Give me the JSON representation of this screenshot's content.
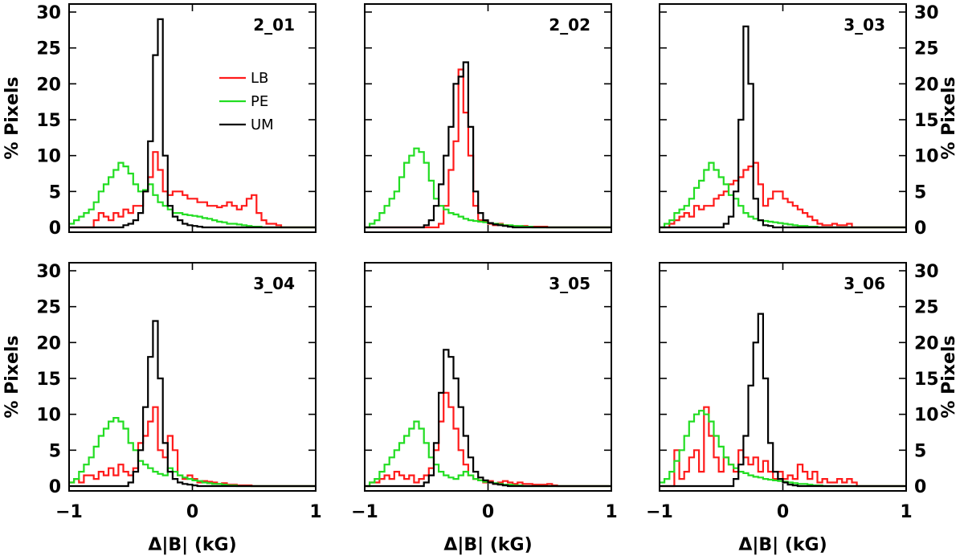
{
  "chart_data": {
    "type": "histogram",
    "layout": "2x3 grid of panels",
    "xlabel": "Δ|B| (kG)",
    "ylabel": "% Pixels",
    "xlim": [
      -1,
      1
    ],
    "ylim": [
      0,
      30
    ],
    "xticks": [
      "−1",
      "0",
      "1"
    ],
    "yticks": [
      "0",
      "5",
      "10",
      "15",
      "20",
      "25",
      "30"
    ],
    "bin_width_kG": 0.04,
    "bin_start_kG": -1.0,
    "legend": {
      "location": "panel 2_01, upper-middle",
      "entries": [
        {
          "label": "LB",
          "color": "#ff1a1a"
        },
        {
          "label": "PE",
          "color": "#22dd22"
        },
        {
          "label": "UM",
          "color": "#000000"
        }
      ]
    },
    "panels": [
      {
        "name": "2_01",
        "series": [
          {
            "name": "LB",
            "color": "#ff1a1a",
            "values": [
              0,
              0,
              0,
              0,
              0,
              1,
              2,
              1.5,
              1,
              2,
              1.5,
              2.5,
              2,
              3,
              3,
              5,
              7,
              10.5,
              8,
              5,
              4.5,
              5,
              5,
              4.5,
              4,
              4,
              3.5,
              3.5,
              3,
              3,
              2.8,
              3,
              3.5,
              3,
              2.5,
              3,
              4,
              4.5,
              2,
              1,
              0.5,
              0.5,
              0.3,
              0,
              0,
              0,
              0,
              0,
              0,
              0
            ]
          },
          {
            "name": "PE",
            "color": "#22dd22",
            "values": [
              0.5,
              1,
              1.5,
              2,
              2.5,
              3.5,
              5,
              6,
              7,
              8,
              9,
              8.5,
              7.5,
              6,
              5,
              5.2,
              6,
              4.5,
              3.5,
              3,
              2.5,
              2,
              2,
              1.8,
              1.7,
              1.6,
              1.5,
              1.3,
              1.2,
              1,
              0.8,
              0.7,
              0.5,
              0.5,
              0.4,
              0.3,
              0.2,
              0.1,
              0.1,
              0,
              0,
              0,
              0,
              0,
              0,
              0,
              0,
              0,
              0,
              0
            ]
          },
          {
            "name": "UM",
            "color": "#000000",
            "values": [
              0,
              0,
              0,
              0,
              0,
              0,
              0,
              0,
              0,
              0,
              0,
              0.3,
              0.5,
              1,
              2,
              5,
              12,
              24,
              29,
              10,
              3,
              1.5,
              1,
              0.5,
              0.3,
              0.2,
              0.1,
              0,
              0,
              0,
              0,
              0,
              0,
              0,
              0,
              0,
              0,
              0,
              0,
              0,
              0,
              0,
              0,
              0,
              0,
              0,
              0,
              0,
              0,
              0
            ]
          }
        ]
      },
      {
        "name": "2_02",
        "series": [
          {
            "name": "LB",
            "color": "#ff1a1a",
            "values": [
              0,
              0,
              0,
              0,
              0,
              0,
              0,
              0,
              0,
              0,
              0,
              0,
              0,
              0,
              0,
              0.5,
              3,
              8,
              12,
              22,
              16,
              10,
              3,
              1,
              0.8,
              0.5,
              0.3,
              0.5,
              0.3,
              0.2,
              0.2,
              0.1,
              0.2,
              0.1,
              0.1,
              0.1,
              0.1,
              0,
              0,
              0,
              0,
              0,
              0,
              0,
              0,
              0,
              0,
              0,
              0,
              0
            ]
          },
          {
            "name": "PE",
            "color": "#22dd22",
            "values": [
              0,
              0.5,
              1,
              2,
              3,
              4,
              5,
              7,
              9,
              10,
              11,
              10.5,
              9,
              6.5,
              4,
              3,
              2.5,
              2,
              1.8,
              1.5,
              1.2,
              1,
              0.9,
              0.8,
              0.7,
              0.6,
              0.5,
              0.4,
              0.3,
              0.3,
              0.2,
              0.2,
              0.1,
              0.1,
              0,
              0,
              0,
              0,
              0,
              0,
              0,
              0,
              0,
              0,
              0,
              0,
              0,
              0,
              0,
              0
            ]
          },
          {
            "name": "UM",
            "color": "#000000",
            "values": [
              0,
              0,
              0,
              0,
              0,
              0,
              0,
              0,
              0,
              0,
              0,
              0,
              0.3,
              1,
              3,
              6,
              10,
              14,
              20,
              21,
              23,
              14,
              5,
              2,
              1,
              0.6,
              0.4,
              0.3,
              0.2,
              0.1,
              0,
              0,
              0,
              0,
              0,
              0,
              0,
              0,
              0,
              0,
              0,
              0,
              0,
              0,
              0,
              0,
              0,
              0,
              0,
              0
            ]
          }
        ]
      },
      {
        "name": "3_03",
        "series": [
          {
            "name": "LB",
            "color": "#ff1a1a",
            "values": [
              0,
              0,
              0.5,
              1,
              1.5,
              2,
              1.5,
              3,
              2.5,
              3,
              3,
              4,
              4.5,
              5,
              6,
              6.5,
              7,
              8,
              8.5,
              9,
              6,
              3,
              4,
              5,
              5,
              4,
              3.5,
              3,
              2.5,
              2,
              1.5,
              1,
              0.5,
              0.3,
              0.3,
              0.5,
              0.3,
              0.3,
              0.5,
              0,
              0,
              0,
              0,
              0,
              0,
              0,
              0,
              0,
              0,
              0
            ]
          },
          {
            "name": "PE",
            "color": "#22dd22",
            "values": [
              0,
              0.5,
              1,
              2,
              2.5,
              3,
              4,
              5.5,
              6.5,
              8,
              9,
              8,
              7,
              6,
              4.5,
              4,
              3,
              2,
              1.5,
              1.2,
              1,
              0.9,
              0.8,
              0.7,
              0.6,
              0.5,
              0.4,
              0.3,
              0.2,
              0.2,
              0.1,
              0.1,
              0,
              0,
              0,
              0,
              0,
              0,
              0,
              0,
              0,
              0,
              0,
              0,
              0,
              0,
              0,
              0,
              0,
              0
            ]
          },
          {
            "name": "UM",
            "color": "#000000",
            "values": [
              0,
              0,
              0,
              0,
              0,
              0,
              0,
              0,
              0,
              0,
              0,
              0,
              0,
              0.5,
              1.5,
              5,
              15,
              28,
              20,
              4,
              1,
              0.3,
              0.2,
              0,
              0,
              0,
              0,
              0,
              0,
              0,
              0,
              0,
              0,
              0,
              0,
              0,
              0,
              0,
              0,
              0,
              0,
              0,
              0,
              0,
              0,
              0,
              0,
              0,
              0,
              0
            ]
          }
        ]
      },
      {
        "name": "3_04",
        "series": [
          {
            "name": "LB",
            "color": "#ff1a1a",
            "values": [
              0.5,
              1,
              0.5,
              1.5,
              1.5,
              1,
              2,
              1.5,
              2.5,
              1.5,
              3,
              2,
              1.5,
              2.5,
              6,
              7,
              9,
              11,
              5,
              4,
              7,
              5,
              1.5,
              1,
              1.5,
              1,
              0.5,
              0.7,
              0.6,
              0.5,
              0.3,
              0.4,
              0.2,
              0.2,
              0.1,
              0.1,
              0.1,
              0,
              0,
              0,
              0,
              0,
              0,
              0,
              0,
              0,
              0,
              0,
              0,
              0
            ]
          },
          {
            "name": "PE",
            "color": "#22dd22",
            "values": [
              0.5,
              1,
              2,
              3,
              4,
              5.5,
              7,
              8,
              9,
              9.5,
              9,
              8,
              6,
              5,
              3.5,
              3,
              2.5,
              2,
              1.7,
              1.5,
              2.5,
              2,
              1.5,
              1.2,
              1,
              0.8,
              0.7,
              0.5,
              0.4,
              0.3,
              0.3,
              0.2,
              0.1,
              0.1,
              0,
              0,
              0,
              0,
              0,
              0,
              0,
              0,
              0,
              0,
              0,
              0,
              0,
              0,
              0,
              0
            ]
          },
          {
            "name": "UM",
            "color": "#000000",
            "values": [
              0,
              0,
              0,
              0,
              0,
              0,
              0,
              0,
              0,
              0,
              0,
              0,
              0.5,
              2,
              5,
              11,
              18,
              23,
              15,
              6,
              2,
              1,
              0.5,
              0.3,
              0.2,
              0.1,
              0,
              0,
              0,
              0,
              0,
              0,
              0,
              0,
              0,
              0,
              0,
              0,
              0,
              0,
              0,
              0,
              0,
              0,
              0,
              0,
              0,
              0,
              0,
              0
            ]
          }
        ]
      },
      {
        "name": "3_05",
        "series": [
          {
            "name": "LB",
            "color": "#ff1a1a",
            "values": [
              0,
              0.5,
              0.5,
              1,
              1.5,
              1,
              2,
              1.5,
              1,
              1.5,
              0.5,
              1,
              1.5,
              2.5,
              5,
              9,
              13,
              11,
              8,
              5,
              3,
              1.5,
              1,
              0.8,
              0.5,
              0.7,
              0.3,
              0.5,
              0.7,
              0.5,
              0.3,
              0.5,
              0.3,
              0.3,
              0.2,
              0.2,
              0.2,
              0.3,
              0.1,
              0,
              0,
              0,
              0,
              0,
              0,
              0,
              0,
              0,
              0,
              0
            ]
          },
          {
            "name": "PE",
            "color": "#22dd22",
            "values": [
              0,
              0.5,
              1,
              2,
              3,
              4,
              5,
              6,
              7,
              8,
              9,
              8,
              6,
              4,
              3,
              2,
              1.5,
              1.2,
              1,
              1.5,
              2,
              1.5,
              1,
              0.8,
              0.6,
              0.5,
              0.4,
              0.3,
              0.2,
              0.2,
              0.1,
              0.1,
              0,
              0,
              0,
              0,
              0,
              0,
              0,
              0,
              0,
              0,
              0,
              0,
              0,
              0,
              0,
              0,
              0,
              0
            ]
          },
          {
            "name": "UM",
            "color": "#000000",
            "values": [
              0,
              0,
              0,
              0,
              0,
              0,
              0,
              0,
              0,
              0,
              0,
              0,
              0.5,
              1.5,
              6,
              13,
              19,
              18,
              15,
              11,
              7,
              4,
              2,
              1.2,
              0.8,
              0.5,
              0.3,
              0.2,
              0.1,
              0,
              0,
              0,
              0,
              0,
              0,
              0,
              0,
              0,
              0,
              0,
              0,
              0,
              0,
              0,
              0,
              0,
              0,
              0,
              0,
              0
            ]
          }
        ]
      },
      {
        "name": "3_06",
        "series": [
          {
            "name": "LB",
            "color": "#ff1a1a",
            "values": [
              0,
              0,
              0,
              5,
              1,
              2,
              4,
              5,
              2,
              11,
              7,
              4,
              2,
              4,
              3,
              2,
              5,
              4,
              3,
              4,
              2,
              3.5,
              2,
              1,
              2,
              1,
              1.5,
              1,
              3,
              2,
              1,
              2,
              0.5,
              1,
              0.5,
              0.5,
              1,
              0.5,
              1,
              0.5,
              0,
              0,
              0,
              0,
              0,
              0,
              0,
              0,
              0,
              0
            ]
          },
          {
            "name": "PE",
            "color": "#22dd22",
            "values": [
              0.5,
              1,
              2,
              3.5,
              5,
              7,
              9,
              10,
              10.5,
              10,
              9,
              7,
              5.5,
              4,
              3,
              2.5,
              2,
              1.8,
              1.5,
              1.3,
              1.2,
              1,
              0.9,
              0.8,
              0.7,
              0.6,
              0.5,
              0.4,
              0.3,
              0.3,
              0.2,
              0.1,
              0.1,
              0,
              0,
              0,
              0,
              0,
              0,
              0,
              0,
              0,
              0,
              0,
              0,
              0,
              0,
              0,
              0,
              0
            ]
          },
          {
            "name": "UM",
            "color": "#000000",
            "values": [
              0,
              0,
              0,
              0,
              0,
              0,
              0,
              0,
              0,
              0,
              0,
              0,
              0,
              0,
              0,
              1,
              3,
              7,
              14,
              20,
              24,
              15,
              6,
              2,
              1,
              0.5,
              0.2,
              0.1,
              0,
              0,
              0,
              0,
              0,
              0,
              0,
              0,
              0,
              0,
              0,
              0,
              0,
              0,
              0,
              0,
              0,
              0,
              0,
              0,
              0,
              0
            ]
          }
        ]
      }
    ]
  }
}
